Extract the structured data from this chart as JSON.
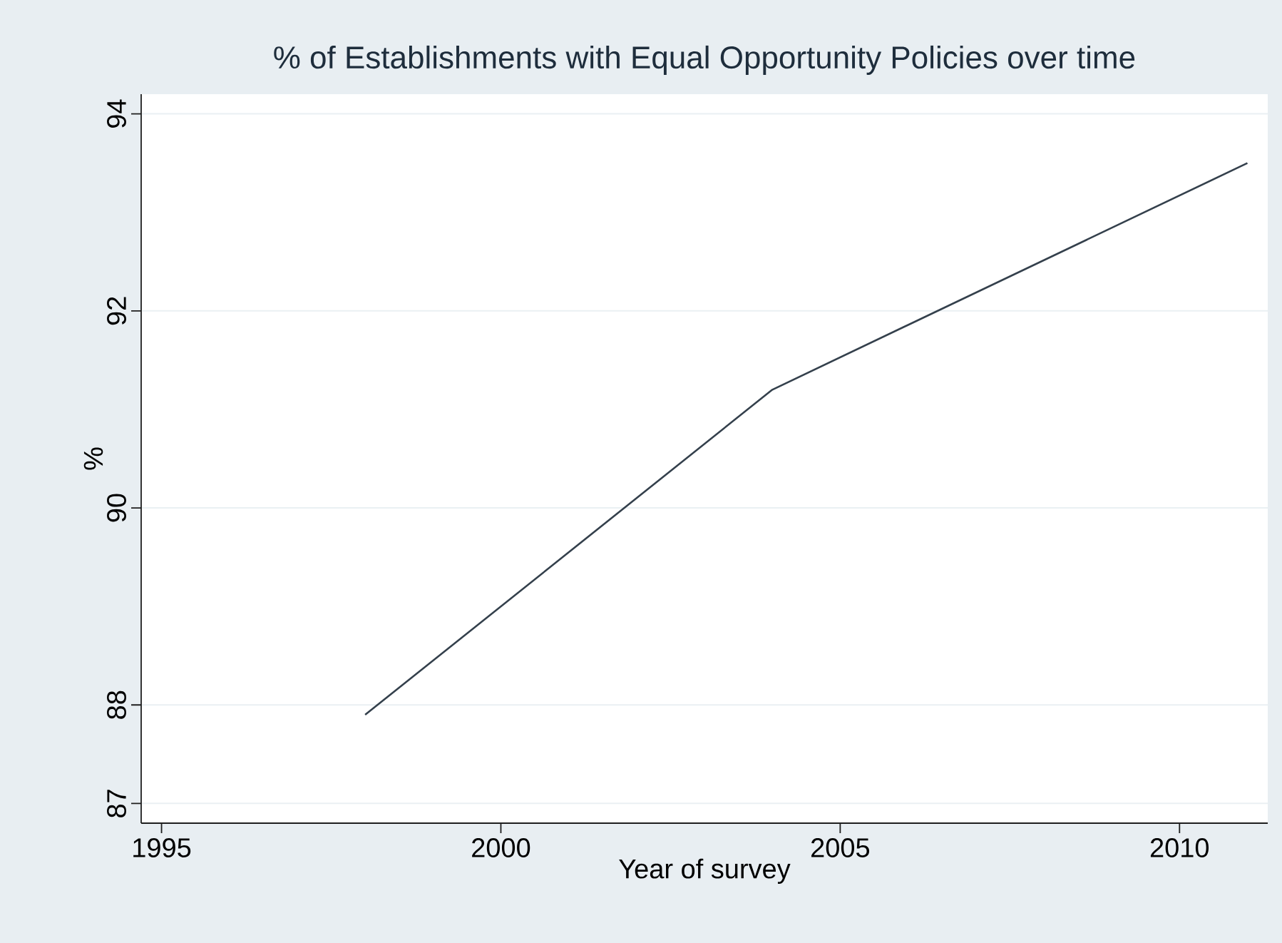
{
  "chart_data": {
    "type": "line",
    "title": "% of Establishments with Equal Opportunity Policies over time",
    "xlabel": "Year of survey",
    "ylabel": "%",
    "x": [
      1998,
      2004,
      2011
    ],
    "series": [
      {
        "color": "#34404c",
        "values": [
          87.9,
          91.2,
          93.5
        ]
      }
    ],
    "xlim": [
      1994.7,
      2011.3
    ],
    "ylim": [
      86.8,
      94.2
    ],
    "xticks": [
      1995,
      2000,
      2005,
      2010
    ],
    "yticks": [
      87,
      88,
      90,
      92,
      94
    ],
    "grid": "y",
    "legend": false,
    "marker": "none",
    "line_style": "solid"
  }
}
